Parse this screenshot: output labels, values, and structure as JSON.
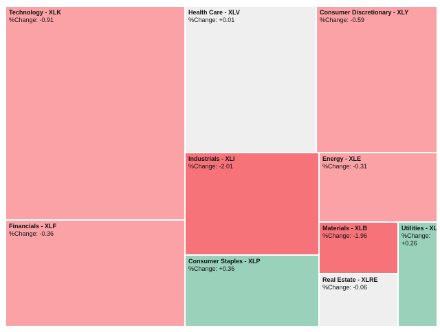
{
  "chart_data": {
    "type": "treemap",
    "change_label": "%Change:",
    "colors": {
      "strong_negative": "#F7737A",
      "negative": "#FAA2A5",
      "neutral": "#EFEFEF",
      "positive": "#99D1BA"
    },
    "sectors": [
      {
        "name": "Technology - XLK",
        "change": "-0.91",
        "color_key": "negative"
      },
      {
        "name": "Financials - XLF",
        "change": "-0.36",
        "color_key": "negative"
      },
      {
        "name": "Health Care - XLV",
        "change": "+0.01",
        "color_key": "neutral"
      },
      {
        "name": "Industrials - XLI",
        "change": "-2.01",
        "color_key": "strong_negative"
      },
      {
        "name": "Consumer Staples - XLP",
        "change": "+0.36",
        "color_key": "positive"
      },
      {
        "name": "Consumer Discretionary - XLY",
        "change": "-0.59",
        "color_key": "negative"
      },
      {
        "name": "Energy - XLE",
        "change": "-0.31",
        "color_key": "negative"
      },
      {
        "name": "Materials - XLB",
        "change": "-1.96",
        "color_key": "strong_negative"
      },
      {
        "name": "Real Estate - XLRE",
        "change": "-0.06",
        "color_key": "neutral"
      },
      {
        "name": "Utilities - XLU",
        "change": "+0.26",
        "color_key": "positive"
      }
    ]
  }
}
